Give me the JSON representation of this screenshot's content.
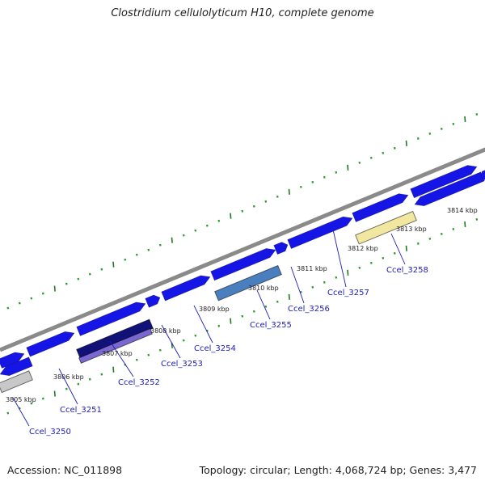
{
  "title": "Clostridium cellulolyticum H10, complete genome",
  "footer": {
    "accession": "Accession: NC_011898",
    "topology": "Topology: circular; Length: 4,068,724 bp; Genes: 3,477"
  },
  "colors": {
    "backbone": "#8a8a8a",
    "gene_default": "#1515e6",
    "tick_major": "#1f7a1f",
    "tick_minor": "#2a9a2a",
    "label_blue": "#1c1cb8"
  },
  "kbp_ticks": [
    {
      "label": "3805 kbp"
    },
    {
      "label": "3806 kbp"
    },
    {
      "label": "3807 kbp"
    },
    {
      "label": "3808 kbp"
    },
    {
      "label": "3809 kbp"
    },
    {
      "label": "3810 kbp"
    },
    {
      "label": "3811 kbp"
    },
    {
      "label": "3812 kbp"
    },
    {
      "label": "3813 kbp"
    },
    {
      "label": "3814 kbp"
    }
  ],
  "gene_labels": [
    {
      "label": "Ccel_3250"
    },
    {
      "label": "Ccel_3251"
    },
    {
      "label": "Ccel_3252"
    },
    {
      "label": "Ccel_3253"
    },
    {
      "label": "Ccel_3254"
    },
    {
      "label": "Ccel_3255"
    },
    {
      "label": "Ccel_3256"
    },
    {
      "label": "Ccel_3257"
    },
    {
      "label": "Ccel_3258"
    }
  ],
  "genes": [
    {
      "strand": "plus",
      "color": "#1515e6"
    },
    {
      "strand": "plus",
      "color": "#1515e6"
    },
    {
      "strand": "plus",
      "color": "#1515e6"
    },
    {
      "strand": "plus",
      "color": "#1515e6"
    },
    {
      "strand": "plus",
      "color": "#1515e6"
    },
    {
      "strand": "plus",
      "color": "#1515e6"
    },
    {
      "strand": "plus",
      "color": "#1515e6"
    },
    {
      "strand": "plus",
      "color": "#1515e6"
    },
    {
      "strand": "plus",
      "color": "#1515e6"
    },
    {
      "strand": "plus",
      "color": "#1515e6"
    },
    {
      "strand": "minus",
      "color": "#1515e6"
    },
    {
      "strand": "minus",
      "color": "#c8c8c8"
    },
    {
      "strand": "minus",
      "color": "#11117a"
    },
    {
      "strand": "minus",
      "color": "#7a68d0"
    },
    {
      "strand": "minus",
      "color": "#4a7fbf"
    },
    {
      "strand": "minus",
      "color": "#f2e7a0"
    },
    {
      "strand": "minus",
      "color": "#1515e6"
    },
    {
      "strand": "minus",
      "color": "#1515e6"
    }
  ]
}
